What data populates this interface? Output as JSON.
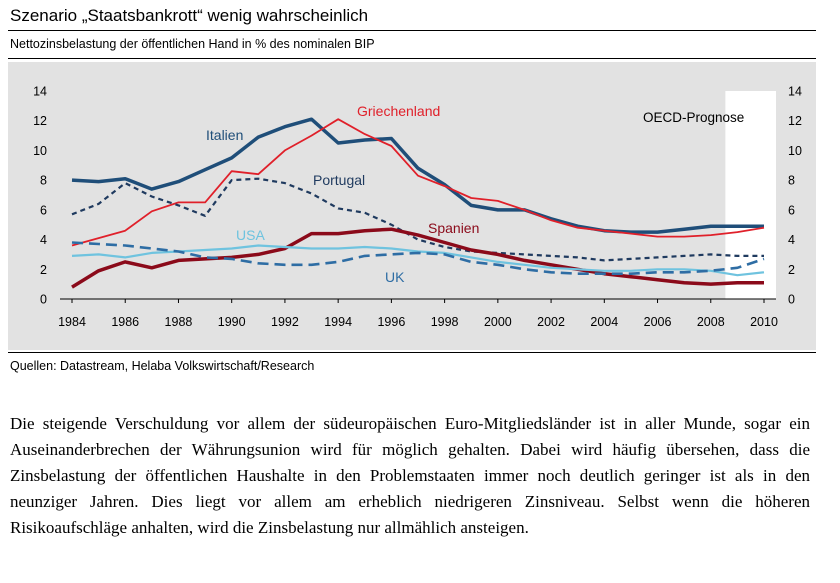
{
  "title": "Szenario „Staatsbankrott“ wenig wahrscheinlich",
  "subtitle": "Nettozinsbelastung der öffentlichen Hand in % des nominalen BIP",
  "source": "Quellen: Datastream, Helaba Volkswirtschaft/Research",
  "body_text": "Die steigende Verschuldung vor allem der südeuropäischen Euro-Mitgliedsländer ist in aller Munde, sogar ein Auseinanderbrechen der Währungsunion wird für möglich gehalten. Dabei wird häufig übersehen, dass die Zinsbelastung der öffentlichen Haushalte in den Problemstaaten immer noch deutlich geringer ist als in den neunziger Jahren. Dies liegt vor allem am erheblich niedrigeren Zinsniveau. Selbst wenn die höheren Risikoaufschläge anhalten, wird die Zinsbelastung nur allmählich ansteigen.",
  "chart_data": {
    "type": "line",
    "title": "Nettozinsbelastung der öffentlichen Hand in % des nominalen BIP",
    "xlabel": "",
    "ylabel": "",
    "xlim": [
      1984,
      2010
    ],
    "ylim": [
      0,
      14
    ],
    "x_ticks": [
      "1984",
      "1986",
      "1988",
      "1990",
      "1992",
      "1994",
      "1996",
      "1998",
      "2000",
      "2002",
      "2004",
      "2006",
      "2008",
      "2010"
    ],
    "y_ticks": [
      "0",
      "2",
      "4",
      "6",
      "8",
      "10",
      "12",
      "14"
    ],
    "annotation": "OECD-Prognose",
    "forecast_range": [
      2009,
      2010
    ],
    "x": [
      1984,
      1985,
      1986,
      1987,
      1988,
      1989,
      1990,
      1991,
      1992,
      1993,
      1994,
      1995,
      1996,
      1997,
      1998,
      1999,
      2000,
      2001,
      2002,
      2003,
      2004,
      2005,
      2006,
      2007,
      2008,
      2009,
      2010
    ],
    "series": [
      {
        "name": "Italien",
        "color": "#1f4e79",
        "dash": "solid",
        "width": 3.5,
        "values": [
          8.0,
          7.9,
          8.1,
          7.4,
          7.9,
          8.7,
          9.5,
          10.9,
          11.6,
          12.1,
          10.5,
          10.7,
          10.8,
          8.8,
          7.7,
          6.3,
          6.0,
          6.0,
          5.4,
          4.9,
          4.6,
          4.5,
          4.5,
          4.7,
          4.9,
          4.9,
          4.9
        ]
      },
      {
        "name": "Griechenland",
        "color": "#e0202a",
        "dash": "solid",
        "width": 1.8,
        "values": [
          3.6,
          4.1,
          4.6,
          5.9,
          6.5,
          6.5,
          8.6,
          8.4,
          10.0,
          11.0,
          12.1,
          11.1,
          10.3,
          8.3,
          7.6,
          6.8,
          6.6,
          6.0,
          5.3,
          4.8,
          4.6,
          4.4,
          4.2,
          4.2,
          4.3,
          4.5,
          4.8
        ]
      },
      {
        "name": "Portugal",
        "color": "#1f3a5f",
        "dash": "short",
        "width": 2.2,
        "values": [
          5.7,
          6.4,
          7.8,
          6.9,
          6.3,
          5.6,
          8.0,
          8.1,
          7.8,
          7.1,
          6.1,
          5.8,
          5.0,
          4.0,
          3.5,
          3.2,
          3.1,
          3.0,
          2.9,
          2.8,
          2.6,
          2.7,
          2.8,
          2.9,
          3.0,
          2.9,
          2.9
        ]
      },
      {
        "name": "Spanien",
        "color": "#8b0a1a",
        "dash": "solid",
        "width": 3.5,
        "values": [
          0.8,
          1.9,
          2.5,
          2.1,
          2.6,
          2.7,
          2.8,
          3.0,
          3.4,
          4.4,
          4.4,
          4.6,
          4.7,
          4.3,
          3.8,
          3.3,
          3.0,
          2.6,
          2.3,
          2.0,
          1.7,
          1.5,
          1.3,
          1.1,
          1.0,
          1.1,
          1.1
        ]
      },
      {
        "name": "USA",
        "color": "#6fc3df",
        "dash": "solid",
        "width": 2.2,
        "values": [
          2.9,
          3.0,
          2.8,
          3.1,
          3.2,
          3.3,
          3.4,
          3.6,
          3.5,
          3.4,
          3.4,
          3.5,
          3.4,
          3.2,
          3.1,
          2.8,
          2.5,
          2.3,
          2.1,
          2.0,
          1.9,
          1.9,
          2.0,
          2.0,
          1.9,
          1.6,
          1.8
        ]
      },
      {
        "name": "UK",
        "color": "#2e6da4",
        "dash": "long",
        "width": 2.6,
        "values": [
          3.8,
          3.7,
          3.6,
          3.4,
          3.2,
          2.8,
          2.7,
          2.4,
          2.3,
          2.3,
          2.5,
          2.9,
          3.0,
          3.1,
          3.0,
          2.5,
          2.3,
          2.0,
          1.8,
          1.7,
          1.7,
          1.7,
          1.8,
          1.8,
          1.9,
          2.1,
          2.7
        ]
      }
    ],
    "series_labels": {
      "Italien": "Italien",
      "Griechenland": "Griechenland",
      "Portugal": "Portugal",
      "Spanien": "Spanien",
      "USA": "USA",
      "UK": "UK"
    }
  }
}
